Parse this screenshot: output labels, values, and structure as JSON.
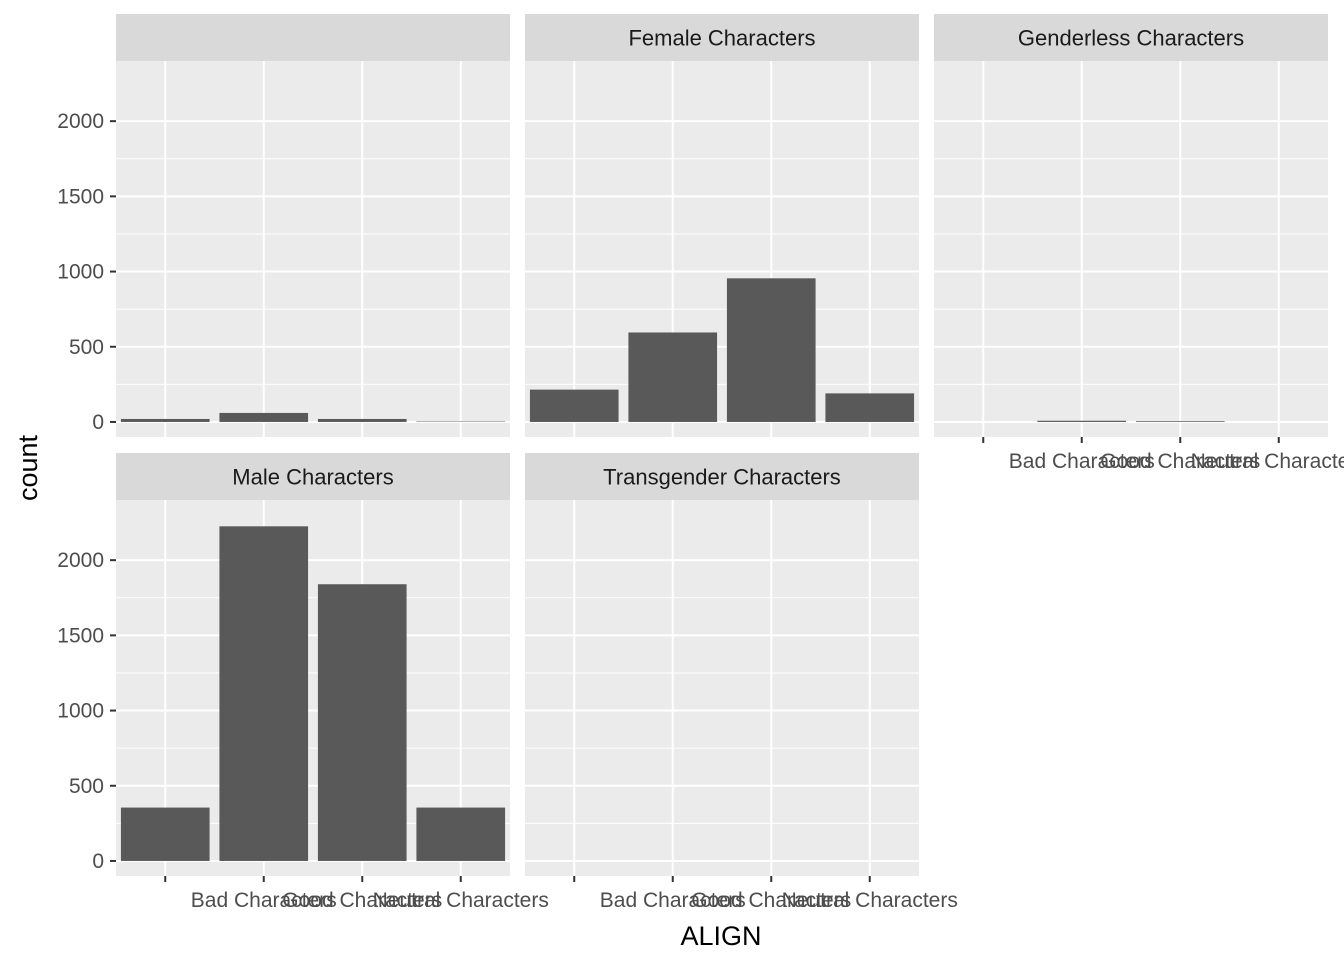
{
  "chart_data": {
    "type": "bar",
    "xlabel": "ALIGN",
    "ylabel": "count",
    "ylim": [
      -100,
      2400
    ],
    "yticks": [
      0,
      500,
      1000,
      1500,
      2000
    ],
    "y_tick_labels": [
      "0",
      "500",
      "1000",
      "1500",
      "2000"
    ],
    "categories": [
      "",
      "Bad Characters",
      "Good Characters",
      "Neutral Characters"
    ],
    "facets": [
      {
        "title": "",
        "values": [
          20,
          60,
          20,
          3
        ]
      },
      {
        "title": "Female Characters",
        "values": [
          215,
          595,
          955,
          190
        ]
      },
      {
        "title": "Genderless Characters",
        "values": [
          0,
          8,
          5,
          0
        ]
      },
      {
        "title": "Male Characters",
        "values": [
          355,
          2225,
          1840,
          355
        ]
      },
      {
        "title": "Transgender Characters",
        "values": [
          0,
          0,
          0,
          0
        ]
      }
    ],
    "grid": true,
    "bar_color": "#595959",
    "panel_background": "#ebebeb",
    "strip_background": "#d9d9d9",
    "gridline_color": "#ffffff"
  }
}
